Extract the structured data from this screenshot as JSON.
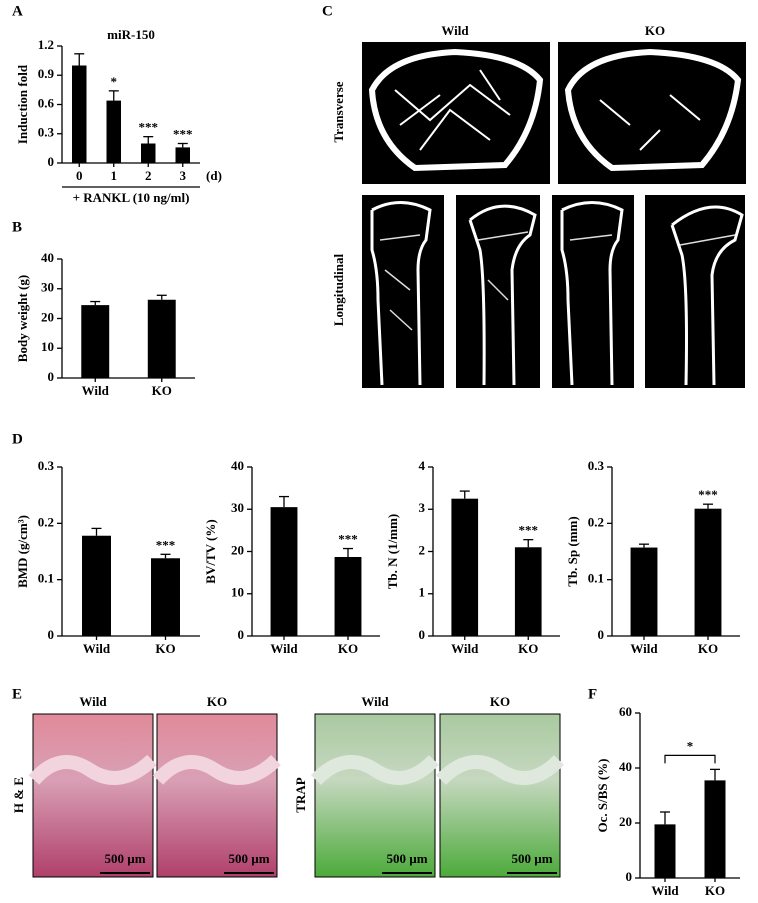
{
  "panel_labels": [
    "A",
    "B",
    "C",
    "D",
    "E",
    "F"
  ],
  "panel_c": {
    "columns": [
      "Wild",
      "KO"
    ],
    "rows": [
      "Transverse",
      "Longitudinal"
    ]
  },
  "panel_e": {
    "columns": [
      "Wild",
      "KO",
      "Wild",
      "KO"
    ],
    "rows": [
      "H & E",
      "TRAP"
    ],
    "scale_bars": [
      "500 µm",
      "500 µm",
      "500 µm",
      "500 µm"
    ]
  },
  "chart_data": [
    {
      "type": "bar",
      "title": "miR-150",
      "y_label": "Induction fold",
      "x_label": "+ RANKL (10 ng/ml)",
      "x_unit": "(d)",
      "categories": [
        "0",
        "1",
        "2",
        "3"
      ],
      "values": [
        1.0,
        0.64,
        0.2,
        0.16
      ],
      "errors": [
        0.12,
        0.1,
        0.07,
        0.04
      ],
      "significance": [
        null,
        "*",
        "***",
        "***"
      ],
      "color": "#000000",
      "ylim": [
        0,
        1.2
      ],
      "yticks": [
        0,
        0.3,
        0.6,
        0.9,
        1.2
      ]
    },
    {
      "type": "bar",
      "y_label": "Body weight (g)",
      "categories": [
        "Wild",
        "KO"
      ],
      "values": [
        24.5,
        26.3
      ],
      "errors": [
        1.2,
        1.5
      ],
      "color": "#000000",
      "ylim": [
        0,
        40
      ],
      "yticks": [
        0,
        10,
        20,
        30,
        40
      ]
    },
    {
      "type": "bar",
      "y_label": "BMD (g/cm³)",
      "categories": [
        "Wild",
        "KO"
      ],
      "values": [
        0.178,
        0.138
      ],
      "errors": [
        0.013,
        0.007
      ],
      "significance": [
        null,
        "***"
      ],
      "color": "#000000",
      "ylim": [
        0,
        0.3
      ],
      "yticks": [
        0,
        0.1,
        0.2,
        0.3
      ]
    },
    {
      "type": "bar",
      "y_label": "BV/TV (%)",
      "categories": [
        "Wild",
        "KO"
      ],
      "values": [
        30.5,
        18.7
      ],
      "errors": [
        2.5,
        2.0
      ],
      "significance": [
        null,
        "***"
      ],
      "color": "#000000",
      "ylim": [
        0,
        40
      ],
      "yticks": [
        0,
        10,
        20,
        30,
        40
      ]
    },
    {
      "type": "bar",
      "y_label": "Tb. N (1/mm)",
      "categories": [
        "Wild",
        "KO"
      ],
      "values": [
        3.25,
        2.1
      ],
      "errors": [
        0.18,
        0.18
      ],
      "significance": [
        null,
        "***"
      ],
      "color": "#000000",
      "ylim": [
        0,
        4
      ],
      "yticks": [
        0,
        1,
        2,
        3,
        4
      ]
    },
    {
      "type": "bar",
      "y_label": "Tb. Sp (mm)",
      "categories": [
        "Wild",
        "KO"
      ],
      "values": [
        0.157,
        0.226
      ],
      "errors": [
        0.006,
        0.008
      ],
      "significance": [
        null,
        "***"
      ],
      "color": "#000000",
      "ylim": [
        0,
        0.3
      ],
      "yticks": [
        0,
        0.1,
        0.2,
        0.3
      ]
    },
    {
      "type": "bar",
      "y_label": "Oc. S/BS (%)",
      "categories": [
        "Wild",
        "KO"
      ],
      "values": [
        19.5,
        35.5
      ],
      "errors": [
        4.5,
        4.0
      ],
      "bracket_label": "*",
      "color": "#000000",
      "ylim": [
        0,
        60
      ],
      "yticks": [
        0,
        20,
        40,
        60
      ]
    }
  ]
}
